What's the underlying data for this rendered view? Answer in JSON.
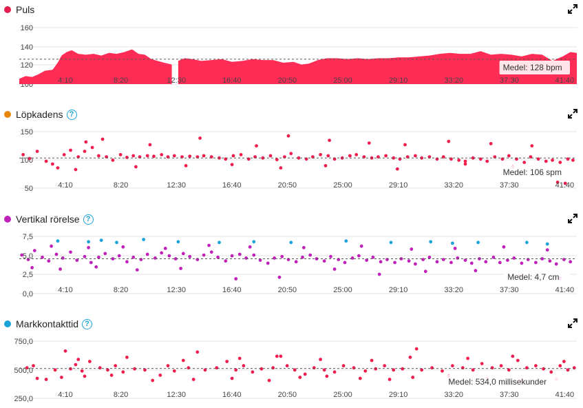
{
  "x_ticks": [
    "4:10",
    "8:20",
    "12:30",
    "16:40",
    "20:50",
    "25:00",
    "29:10",
    "33:20",
    "37:30",
    "41:40"
  ],
  "panels": [
    {
      "id": "puls",
      "title": "Puls",
      "color": "#e61e4d",
      "has_help": false,
      "average_label": "Medel: 128 bpm",
      "y_ticks": [
        "160",
        "140",
        "120",
        "100"
      ]
    },
    {
      "id": "cadence",
      "title": "Löpkadens",
      "color": "#e8860c",
      "has_help": true,
      "average_label": "Medel: 106 spm",
      "y_ticks": [
        "150",
        "100",
        "50"
      ]
    },
    {
      "id": "vertical",
      "title": "Vertikal rörelse",
      "color": "#c021b8",
      "has_help": true,
      "average_label": "Medel: 4,7 cm",
      "y_ticks": [
        "7,5",
        "5,0",
        "2,5",
        "0,0"
      ]
    },
    {
      "id": "gct",
      "title": "Markkontakttid",
      "color": "#1aa3d9",
      "has_help": true,
      "average_label": "Medel: 534,0 millisekunder",
      "y_ticks": [
        "750,0",
        "500,0",
        "250,0"
      ]
    }
  ],
  "chart_data": [
    {
      "type": "area",
      "title": "Puls",
      "x_unit": "minutes",
      "xlim": [
        0,
        43.5
      ],
      "ylim": [
        100,
        165
      ],
      "average": 128,
      "color": "#ff2c55",
      "gaps": [
        [
          12.0,
          12.35
        ]
      ],
      "x": [
        0.0,
        0.5,
        1.0,
        1.5,
        2.0,
        2.6,
        3.0,
        3.3,
        3.7,
        4.1,
        4.6,
        5.2,
        5.8,
        6.4,
        7.0,
        7.6,
        8.2,
        8.8,
        9.3,
        9.8,
        10.3,
        10.8,
        11.3,
        11.9,
        12.4,
        12.9,
        13.5,
        14.2,
        15.0,
        15.8,
        16.6,
        17.4,
        18.2,
        19.0,
        19.8,
        20.6,
        21.4,
        22.0,
        22.6,
        23.3,
        24.0,
        24.8,
        25.6,
        26.4,
        27.2,
        28.0,
        28.8,
        29.6,
        30.4,
        31.2,
        32.0,
        32.8,
        33.6,
        34.4,
        35.2,
        36.0,
        36.8,
        37.6,
        38.4,
        39.2,
        40.0,
        40.8,
        41.6,
        42.4,
        43.0,
        43.5
      ],
      "y": [
        106,
        109,
        108,
        111,
        115,
        116,
        124,
        132,
        136,
        138,
        134,
        133,
        134,
        132,
        135,
        134,
        136,
        139,
        134,
        133,
        128,
        126,
        124,
        122,
        126,
        129,
        128,
        126,
        127,
        128,
        125,
        126,
        128,
        127,
        127,
        124,
        125,
        122,
        123,
        127,
        129,
        129,
        128,
        129,
        128,
        129,
        129,
        130,
        130,
        131,
        132,
        134,
        135,
        134,
        134,
        137,
        133,
        134,
        133,
        131,
        134,
        133,
        126,
        131,
        136,
        135
      ]
    },
    {
      "type": "scatter",
      "title": "Löpkadens",
      "x_unit": "minutes",
      "xlim": [
        0,
        43.5
      ],
      "ylim": [
        50,
        155
      ],
      "average": 106,
      "color": "#ee1e4e",
      "x": [
        0.3,
        0.8,
        1.4,
        2.1,
        2.6,
        3.0,
        3.5,
        4.0,
        4.6,
        5.1,
        5.7,
        6.2,
        6.8,
        7.3,
        7.9,
        8.4,
        8.9,
        9.4,
        10.0,
        10.5,
        11.1,
        11.6,
        12.1,
        12.7,
        13.3,
        13.9,
        14.4,
        15.0,
        15.6,
        16.1,
        16.7,
        17.3,
        17.9,
        18.4,
        19.0,
        19.6,
        20.1,
        20.7,
        21.2,
        21.8,
        22.4,
        22.9,
        23.5,
        24.1,
        24.6,
        25.2,
        25.8,
        26.3,
        26.9,
        27.5,
        28.0,
        28.6,
        29.2,
        29.7,
        30.3,
        30.9,
        31.4,
        32.0,
        32.6,
        33.1,
        33.7,
        34.3,
        34.8,
        35.4,
        36.0,
        36.5,
        37.1,
        37.7,
        38.2,
        38.8,
        39.4,
        39.9,
        40.5,
        41.1,
        41.6,
        42.2,
        42.8,
        43.2,
        5.2,
        6.5,
        10.2,
        14.1,
        18.5,
        21.0,
        24.2,
        27.3,
        30.1,
        33.5,
        36.8,
        40.0,
        4.4,
        9.1,
        13.0,
        16.6,
        20.4,
        23.9,
        29.5,
        34.8,
        38.5,
        42.0,
        42.6
      ],
      "y": [
        112,
        105,
        118,
        100,
        95,
        88,
        112,
        120,
        108,
        118,
        125,
        110,
        108,
        102,
        112,
        107,
        110,
        108,
        110,
        109,
        112,
        108,
        110,
        108,
        109,
        108,
        110,
        108,
        106,
        104,
        110,
        112,
        104,
        108,
        106,
        110,
        103,
        108,
        114,
        106,
        104,
        108,
        112,
        110,
        104,
        106,
        110,
        112,
        108,
        106,
        108,
        110,
        106,
        104,
        108,
        110,
        106,
        108,
        104,
        108,
        104,
        102,
        100,
        106,
        104,
        100,
        108,
        104,
        110,
        104,
        98,
        108,
        104,
        100,
        102,
        98,
        104,
        102,
        135,
        140,
        130,
        142,
        128,
        146,
        138,
        133,
        130,
        136,
        132,
        128,
        85,
        90,
        92,
        94,
        88,
        92,
        86,
        95,
        90,
        62,
        60
      ]
    },
    {
      "type": "scatter",
      "title": "Vertikal rörelse",
      "x_unit": "minutes",
      "xlim": [
        0,
        43.5
      ],
      "ylim": [
        0,
        8
      ],
      "average": 4.7,
      "series": [
        {
          "color": "#c021b8",
          "x": [
            0.2,
            0.7,
            1.2,
            1.8,
            2.3,
            2.9,
            3.4,
            4.0,
            4.5,
            5.1,
            5.6,
            6.2,
            6.7,
            7.3,
            7.8,
            8.4,
            8.9,
            9.5,
            10.0,
            10.6,
            11.1,
            11.7,
            12.2,
            12.8,
            13.3,
            13.9,
            14.4,
            15.0,
            15.5,
            16.1,
            16.6,
            17.2,
            17.7,
            18.3,
            18.8,
            19.4,
            19.9,
            20.5,
            21.0,
            21.6,
            22.1,
            22.7,
            23.2,
            23.8,
            24.3,
            24.9,
            25.4,
            26.0,
            26.5,
            27.1,
            27.6,
            28.2,
            28.7,
            29.3,
            29.8,
            30.4,
            30.9,
            31.5,
            32.0,
            32.6,
            33.1,
            33.7,
            34.2,
            34.8,
            35.3,
            35.9,
            36.4,
            37.0,
            37.5,
            38.1,
            38.6,
            39.2,
            39.7,
            40.3,
            40.8,
            41.4,
            41.9,
            42.5,
            43.0,
            1.0,
            3.2,
            6.0,
            9.2,
            12.6,
            16.9,
            20.3,
            24.6,
            28.1,
            31.7,
            35.6,
            39.0,
            42.2,
            2.5,
            5.4,
            8.1,
            11.4,
            14.8,
            18.0,
            22.2,
            26.7,
            30.6,
            34.0,
            37.8,
            41.2
          ],
          "y": [
            5.2,
            4.6,
            5.8,
            4.9,
            4.4,
            5.3,
            4.8,
            5.6,
            4.5,
            5.0,
            4.2,
            4.9,
            5.4,
            4.7,
            5.1,
            4.3,
            4.9,
            4.6,
            5.3,
            4.8,
            5.5,
            5.1,
            4.7,
            5.4,
            5.0,
            4.6,
            5.2,
            5.6,
            4.9,
            4.4,
            5.1,
            5.3,
            4.8,
            5.2,
            4.5,
            4.1,
            4.8,
            5.0,
            4.6,
            4.3,
            4.9,
            5.2,
            4.7,
            4.4,
            5.0,
            4.6,
            4.2,
            4.8,
            5.1,
            4.5,
            4.9,
            4.3,
            4.6,
            4.2,
            4.7,
            4.4,
            4.0,
            4.6,
            4.9,
            4.3,
            4.6,
            4.2,
            4.8,
            4.5,
            4.1,
            4.7,
            4.3,
            4.9,
            4.2,
            4.5,
            4.8,
            4.1,
            4.6,
            4.2,
            4.7,
            4.4,
            4.0,
            4.6,
            4.3,
            3.5,
            3.3,
            3.6,
            3.2,
            3.4,
            2.0,
            2.2,
            3.3,
            2.6,
            3.0,
            3.1,
            2.4,
            2.1,
            6.4,
            6.2,
            6.3,
            6.1,
            6.5,
            6.3,
            6.2,
            6.4,
            6.0,
            6.1,
            6.3,
            5.9
          ]
        },
        {
          "color": "#1aa3d9",
          "x": [
            3.0,
            5.4,
            6.4,
            7.6,
            9.7,
            12.4,
            15.6,
            18.3,
            21.2,
            25.5,
            29.0,
            32.1,
            33.8,
            35.8,
            39.6,
            41.2
          ],
          "y": [
            7.1,
            7.0,
            7.2,
            6.9,
            7.3,
            7.0,
            6.9,
            7.0,
            6.9,
            7.1,
            6.9,
            7.0,
            6.8,
            6.9,
            6.9,
            6.7
          ]
        }
      ]
    },
    {
      "type": "scatter",
      "title": "Markkontakttid",
      "x_unit": "minutes",
      "xlim": [
        0,
        43.5
      ],
      "ylim": [
        250,
        800
      ],
      "average": 534,
      "color": "#ee1e4e",
      "x": [
        0.6,
        1.1,
        2.8,
        3.6,
        4.0,
        4.4,
        4.9,
        5.5,
        6.3,
        6.9,
        7.5,
        8.1,
        9.0,
        9.8,
        11.0,
        11.6,
        12.1,
        13.2,
        13.9,
        14.5,
        15.4,
        16.2,
        16.9,
        17.5,
        18.2,
        18.9,
        19.8,
        20.4,
        20.9,
        21.5,
        22.3,
        23.0,
        23.8,
        24.6,
        25.3,
        26.1,
        27.0,
        27.8,
        28.5,
        29.2,
        29.9,
        30.5,
        31.4,
        32.2,
        33.0,
        33.8,
        34.6,
        35.4,
        36.1,
        36.9,
        37.6,
        38.2,
        38.9,
        39.6,
        40.3,
        40.9,
        41.5,
        42.2,
        42.8,
        43.3,
        1.4,
        2.1,
        3.3,
        5.1,
        7.2,
        10.4,
        13.6,
        16.6,
        19.5,
        21.9,
        24.0,
        26.6,
        28.9,
        30.7,
        33.5,
        36.5,
        39.2,
        41.9,
        4.6,
        8.4,
        12.8,
        17.2,
        20.1,
        23.5,
        27.5,
        31.0,
        35.0,
        38.5,
        42.5
      ],
      "y": [
        540,
        560,
        520,
        700,
        530,
        570,
        510,
        600,
        540,
        520,
        560,
        500,
        530,
        520,
        470,
        560,
        510,
        540,
        690,
        520,
        540,
        600,
        520,
        560,
        500,
        530,
        540,
        650,
        560,
        520,
        480,
        540,
        520,
        500,
        560,
        540,
        510,
        530,
        560,
        520,
        530,
        640,
        520,
        540,
        510,
        560,
        540,
        520,
        580,
        540,
        560,
        520,
        610,
        540,
        560,
        530,
        500,
        560,
        520,
        540,
        440,
        430,
        450,
        460,
        470,
        420,
        430,
        440,
        420,
        450,
        460,
        440,
        430,
        450,
        460,
        440,
        420,
        430,
        620,
        640,
        610,
        630,
        650,
        620,
        610,
        720,
        630,
        650,
        600
      ]
    }
  ]
}
